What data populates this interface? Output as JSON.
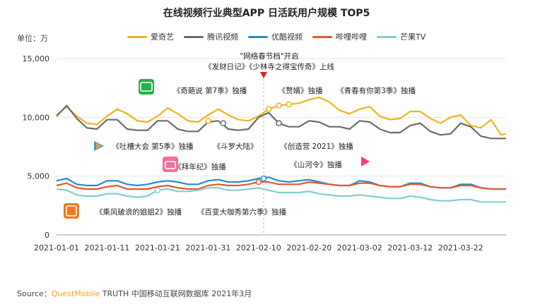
{
  "chart_data": {
    "type": "line",
    "title": "在线视频行业典型APP 日活跃用户规模 TOP5",
    "unit_label": "单位：万",
    "ylim": [
      0,
      15000
    ],
    "yticks": [
      "15,000",
      "10,000",
      "5,000",
      "0"
    ],
    "ytick_values": [
      15000,
      10000,
      5000,
      0
    ],
    "xticks": [
      "2021-01-01",
      "2021-01-11",
      "2021-01-21",
      "2021-01-31",
      "2021-02-10",
      "2021-02-20",
      "2021-03-02",
      "2021-03-12",
      "2021-03-22"
    ],
    "xtick_days": [
      0,
      10,
      20,
      30,
      40,
      50,
      60,
      70,
      80
    ],
    "x_days_total": 89,
    "series": [
      {
        "name": "爱奇艺",
        "color": "#f2b31a",
        "points": [
          [
            0,
            10200
          ],
          [
            2,
            10900
          ],
          [
            4,
            10100
          ],
          [
            6,
            9500
          ],
          [
            8,
            9400
          ],
          [
            10,
            10100
          ],
          [
            12,
            10700
          ],
          [
            14,
            10300
          ],
          [
            16,
            9700
          ],
          [
            18,
            9600
          ],
          [
            20,
            10100
          ],
          [
            22,
            10800
          ],
          [
            24,
            10300
          ],
          [
            26,
            9700
          ],
          [
            28,
            9600
          ],
          [
            30,
            10200
          ],
          [
            32,
            10700
          ],
          [
            34,
            10200
          ],
          [
            36,
            9800
          ],
          [
            38,
            9700
          ],
          [
            40,
            10100
          ],
          [
            42,
            10700
          ],
          [
            44,
            11000
          ],
          [
            46,
            11100
          ],
          [
            48,
            11200
          ],
          [
            50,
            11500
          ],
          [
            52,
            11700
          ],
          [
            54,
            11300
          ],
          [
            56,
            10600
          ],
          [
            58,
            10300
          ],
          [
            60,
            10700
          ],
          [
            62,
            10900
          ],
          [
            64,
            10100
          ],
          [
            66,
            9800
          ],
          [
            68,
            9900
          ],
          [
            70,
            10500
          ],
          [
            72,
            10500
          ],
          [
            74,
            9900
          ],
          [
            76,
            9500
          ],
          [
            78,
            10000
          ],
          [
            80,
            10200
          ],
          [
            82,
            9300
          ],
          [
            84,
            9100
          ],
          [
            86,
            9800
          ],
          [
            88,
            8500
          ],
          [
            89,
            8600
          ]
        ]
      },
      {
        "name": "腾讯视频",
        "color": "#6b6b6b",
        "points": [
          [
            0,
            10100
          ],
          [
            2,
            11000
          ],
          [
            4,
            9900
          ],
          [
            6,
            9100
          ],
          [
            8,
            9000
          ],
          [
            10,
            9800
          ],
          [
            12,
            9800
          ],
          [
            14,
            9000
          ],
          [
            16,
            8900
          ],
          [
            18,
            8900
          ],
          [
            20,
            9700
          ],
          [
            22,
            9700
          ],
          [
            24,
            9000
          ],
          [
            26,
            8800
          ],
          [
            28,
            8800
          ],
          [
            30,
            9600
          ],
          [
            32,
            9700
          ],
          [
            34,
            9000
          ],
          [
            36,
            8900
          ],
          [
            38,
            9000
          ],
          [
            40,
            10000
          ],
          [
            42,
            10400
          ],
          [
            44,
            9500
          ],
          [
            46,
            9200
          ],
          [
            48,
            9200
          ],
          [
            50,
            9700
          ],
          [
            52,
            9600
          ],
          [
            54,
            9200
          ],
          [
            56,
            9200
          ],
          [
            58,
            9000
          ],
          [
            60,
            9700
          ],
          [
            62,
            9600
          ],
          [
            64,
            9000
          ],
          [
            66,
            8700
          ],
          [
            68,
            8700
          ],
          [
            70,
            9300
          ],
          [
            72,
            9500
          ],
          [
            74,
            8800
          ],
          [
            76,
            8500
          ],
          [
            78,
            8600
          ],
          [
            80,
            9500
          ],
          [
            82,
            9200
          ],
          [
            84,
            8400
          ],
          [
            86,
            8200
          ],
          [
            88,
            8200
          ],
          [
            89,
            8200
          ]
        ]
      },
      {
        "name": "优酷视频",
        "color": "#1f8fd6",
        "points": [
          [
            0,
            4600
          ],
          [
            2,
            4800
          ],
          [
            4,
            4300
          ],
          [
            6,
            4200
          ],
          [
            8,
            4200
          ],
          [
            10,
            4600
          ],
          [
            12,
            4600
          ],
          [
            14,
            4300
          ],
          [
            16,
            4200
          ],
          [
            18,
            4300
          ],
          [
            20,
            4500
          ],
          [
            22,
            4600
          ],
          [
            24,
            4500
          ],
          [
            26,
            4300
          ],
          [
            28,
            4300
          ],
          [
            30,
            4600
          ],
          [
            32,
            4700
          ],
          [
            34,
            4500
          ],
          [
            36,
            4500
          ],
          [
            38,
            4600
          ],
          [
            40,
            4800
          ],
          [
            42,
            4900
          ],
          [
            44,
            4600
          ],
          [
            46,
            4500
          ],
          [
            48,
            4600
          ],
          [
            50,
            4700
          ],
          [
            52,
            4500
          ],
          [
            54,
            4300
          ],
          [
            56,
            4200
          ],
          [
            58,
            4200
          ],
          [
            60,
            4600
          ],
          [
            62,
            4500
          ],
          [
            64,
            4200
          ],
          [
            66,
            4100
          ],
          [
            68,
            4100
          ],
          [
            70,
            4400
          ],
          [
            72,
            4400
          ],
          [
            74,
            4100
          ],
          [
            76,
            4000
          ],
          [
            78,
            4000
          ],
          [
            80,
            4300
          ],
          [
            82,
            4300
          ],
          [
            84,
            4000
          ],
          [
            86,
            3900
          ],
          [
            88,
            3900
          ],
          [
            89,
            3900
          ]
        ]
      },
      {
        "name": "哔哩哔哩",
        "color": "#e8572a",
        "points": [
          [
            0,
            4200
          ],
          [
            2,
            4400
          ],
          [
            4,
            4000
          ],
          [
            6,
            3900
          ],
          [
            8,
            3900
          ],
          [
            10,
            4100
          ],
          [
            12,
            4200
          ],
          [
            14,
            3900
          ],
          [
            16,
            3900
          ],
          [
            18,
            3900
          ],
          [
            20,
            4100
          ],
          [
            22,
            4200
          ],
          [
            24,
            4000
          ],
          [
            26,
            3900
          ],
          [
            28,
            3900
          ],
          [
            30,
            4200
          ],
          [
            32,
            4300
          ],
          [
            34,
            4200
          ],
          [
            36,
            4200
          ],
          [
            38,
            4300
          ],
          [
            40,
            4500
          ],
          [
            42,
            4500
          ],
          [
            44,
            4300
          ],
          [
            46,
            4300
          ],
          [
            48,
            4300
          ],
          [
            50,
            4500
          ],
          [
            52,
            4400
          ],
          [
            54,
            4300
          ],
          [
            56,
            4200
          ],
          [
            58,
            4200
          ],
          [
            60,
            4400
          ],
          [
            62,
            4400
          ],
          [
            64,
            4200
          ],
          [
            66,
            4100
          ],
          [
            68,
            4100
          ],
          [
            70,
            4300
          ],
          [
            72,
            4300
          ],
          [
            74,
            4100
          ],
          [
            76,
            4000
          ],
          [
            78,
            4000
          ],
          [
            80,
            4200
          ],
          [
            82,
            4200
          ],
          [
            84,
            4000
          ],
          [
            86,
            3900
          ],
          [
            88,
            3900
          ],
          [
            89,
            3900
          ]
        ]
      },
      {
        "name": "芒果TV",
        "color": "#7fcfcf",
        "points": [
          [
            0,
            3900
          ],
          [
            2,
            3800
          ],
          [
            4,
            3400
          ],
          [
            6,
            3300
          ],
          [
            8,
            3300
          ],
          [
            10,
            3500
          ],
          [
            12,
            3500
          ],
          [
            14,
            3300
          ],
          [
            16,
            3200
          ],
          [
            18,
            3300
          ],
          [
            20,
            3800
          ],
          [
            22,
            3900
          ],
          [
            24,
            3700
          ],
          [
            26,
            3700
          ],
          [
            28,
            3800
          ],
          [
            30,
            4000
          ],
          [
            32,
            4000
          ],
          [
            34,
            3800
          ],
          [
            36,
            3800
          ],
          [
            38,
            3900
          ],
          [
            40,
            4000
          ],
          [
            42,
            3800
          ],
          [
            44,
            3600
          ],
          [
            46,
            3600
          ],
          [
            48,
            3600
          ],
          [
            50,
            3700
          ],
          [
            52,
            3500
          ],
          [
            54,
            3400
          ],
          [
            56,
            3300
          ],
          [
            58,
            3300
          ],
          [
            60,
            3400
          ],
          [
            62,
            3300
          ],
          [
            64,
            3200
          ],
          [
            66,
            3100
          ],
          [
            68,
            3100
          ],
          [
            70,
            3300
          ],
          [
            72,
            3200
          ],
          [
            74,
            3000
          ],
          [
            76,
            2900
          ],
          [
            78,
            2900
          ],
          [
            80,
            3000
          ],
          [
            82,
            3000
          ],
          [
            84,
            2800
          ],
          [
            86,
            2800
          ],
          [
            88,
            2800
          ],
          [
            89,
            2800
          ]
        ]
      }
    ],
    "event_line_day": 41,
    "annotations": [
      {
        "text": "\"网络春节档\"开启",
        "day": 41,
        "value": 15000
      },
      {
        "text": "《发财日记》《少林寺之得宝传奇》上线",
        "day": 41,
        "value": 14000
      },
      {
        "text": "《奇葩说 第7季》独播",
        "day": 22,
        "value": 12200
      },
      {
        "text": "《赘婿》独播",
        "day": 46,
        "value": 12200
      },
      {
        "text": "《青春有你第3季》独播",
        "day": 70,
        "value": 12200
      },
      {
        "text": "《吐槽大会 第5季》独播",
        "day": 13,
        "value": 7600
      },
      {
        "text": "《斗罗大陆》",
        "day": 33,
        "value": 7600
      },
      {
        "text": "《创造营 2021》独播",
        "day": 47,
        "value": 7600
      },
      {
        "text": "《拜年纪》独播",
        "day": 22,
        "value": 5800
      },
      {
        "text": "《山河令》独播",
        "day": 48,
        "value": 5800
      },
      {
        "text": "《乘风破浪的姐姐2》独播",
        "day": 11,
        "value": 1800
      },
      {
        "text": "《百变大咖秀第六季》独播",
        "day": 31,
        "value": 1800
      }
    ]
  },
  "source": {
    "prefix": "Source：",
    "brand": "QuestMobile",
    "rest": " TRUTH 中国移动互联网数据库 2021年3月"
  }
}
